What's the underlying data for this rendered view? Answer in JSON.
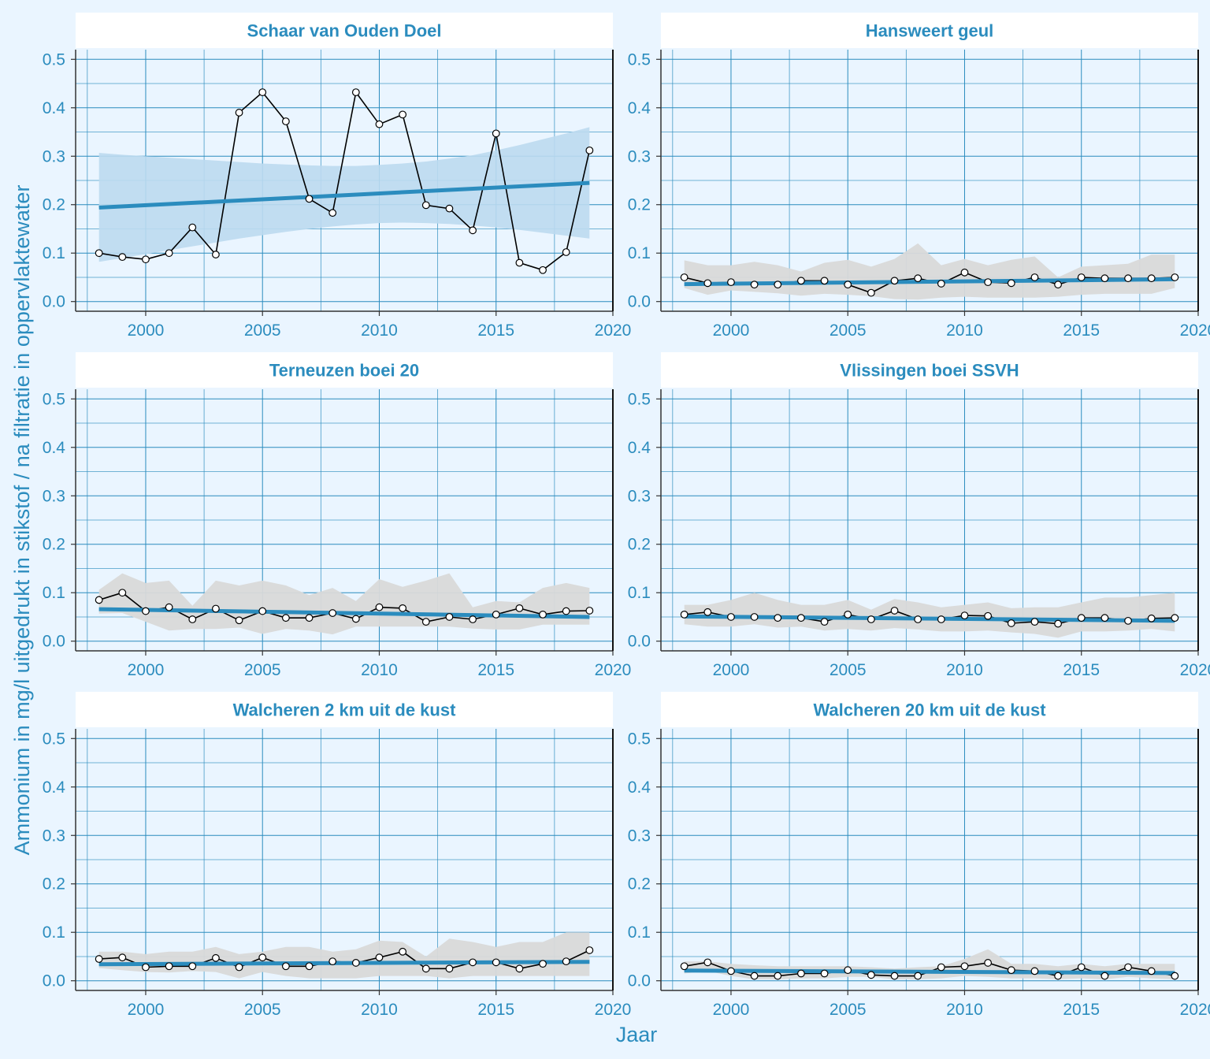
{
  "colors": {
    "background": "#EAF5FF",
    "accent": "#2B8CBE",
    "grid": "#2B8CBE",
    "ribbon_significant": "#BDDAF0",
    "ribbon_not_significant": "#D9D9D9",
    "observed_line": "#000000"
  },
  "chart_data": {
    "type": "line",
    "xlabel": "Jaar",
    "ylabel": "Ammonium in mg/l uitgedrukt in stikstof / na filtratie in oppervlaktewater",
    "xlim": [
      1997,
      2020
    ],
    "ylim": [
      -0.02,
      0.52
    ],
    "x_ticks": [
      2000,
      2005,
      2010,
      2015,
      2020
    ],
    "x_tick_labels": [
      "2000",
      "2005",
      "2010",
      "2015",
      "2020"
    ],
    "y_ticks": [
      0.0,
      0.1,
      0.2,
      0.3,
      0.4,
      0.5
    ],
    "y_tick_labels": [
      "0.0",
      "0.1",
      "0.2",
      "0.3",
      "0.4",
      "0.5"
    ],
    "grid": true,
    "years": [
      1998,
      1999,
      2000,
      2001,
      2002,
      2003,
      2004,
      2005,
      2006,
      2007,
      2008,
      2009,
      2010,
      2011,
      2012,
      2013,
      2014,
      2015,
      2016,
      2017,
      2018,
      2019
    ],
    "panels": [
      {
        "title": "Schaar van Ouden Doel",
        "significant": true,
        "values": [
          0.1,
          0.092,
          0.087,
          0.1,
          0.153,
          0.097,
          0.39,
          0.432,
          0.372,
          0.212,
          0.183,
          0.432,
          0.366,
          0.386,
          0.199,
          0.192,
          0.147,
          0.347,
          0.08,
          0.065,
          0.102,
          0.312
        ],
        "trend": [
          0.194,
          0.245
        ],
        "band_upper": [
          0.307,
          0.303,
          0.3,
          0.297,
          0.294,
          0.291,
          0.288,
          0.285,
          0.283,
          0.281,
          0.28,
          0.28,
          0.282,
          0.285,
          0.289,
          0.295,
          0.302,
          0.312,
          0.323,
          0.335,
          0.347,
          0.36
        ],
        "band_lower": [
          0.082,
          0.09,
          0.098,
          0.106,
          0.114,
          0.122,
          0.13,
          0.137,
          0.144,
          0.15,
          0.155,
          0.159,
          0.162,
          0.163,
          0.162,
          0.16,
          0.157,
          0.153,
          0.148,
          0.142,
          0.136,
          0.13
        ]
      },
      {
        "title": "Hansweert geul",
        "significant": false,
        "values": [
          0.05,
          0.038,
          0.04,
          0.035,
          0.035,
          0.043,
          0.043,
          0.035,
          0.018,
          0.043,
          0.048,
          0.037,
          0.06,
          0.04,
          0.038,
          0.05,
          0.035,
          0.05,
          0.048,
          0.048,
          0.048,
          0.05
        ],
        "trend": [
          0.036,
          0.046
        ],
        "band_upper": [
          0.085,
          0.075,
          0.075,
          0.082,
          0.075,
          0.062,
          0.08,
          0.086,
          0.072,
          0.088,
          0.12,
          0.075,
          0.088,
          0.075,
          0.086,
          0.093,
          0.05,
          0.072,
          0.075,
          0.078,
          0.097,
          0.097
        ],
        "band_lower": [
          0.028,
          0.014,
          0.023,
          0.02,
          0.017,
          0.012,
          0.016,
          0.014,
          0.011,
          0.005,
          0.004,
          0.008,
          0.01,
          0.008,
          0.008,
          0.008,
          0.01,
          0.014,
          0.016,
          0.016,
          0.016,
          0.028
        ]
      },
      {
        "title": "Terneuzen boei 20",
        "significant": false,
        "values": [
          0.085,
          0.1,
          0.062,
          0.07,
          0.045,
          0.067,
          0.043,
          0.062,
          0.048,
          0.048,
          0.058,
          0.046,
          0.07,
          0.068,
          0.04,
          0.05,
          0.045,
          0.055,
          0.068,
          0.055,
          0.062,
          0.063
        ],
        "trend": [
          0.066,
          0.05
        ],
        "band_upper": [
          0.106,
          0.14,
          0.12,
          0.125,
          0.073,
          0.125,
          0.115,
          0.125,
          0.115,
          0.095,
          0.11,
          0.083,
          0.128,
          0.112,
          0.125,
          0.14,
          0.07,
          0.083,
          0.08,
          0.11,
          0.12,
          0.11
        ],
        "band_lower": [
          0.057,
          0.058,
          0.04,
          0.022,
          0.025,
          0.025,
          0.028,
          0.015,
          0.025,
          0.022,
          0.014,
          0.03,
          0.03,
          0.03,
          0.03,
          0.03,
          0.026,
          0.024,
          0.024,
          0.034,
          0.034,
          0.034
        ]
      },
      {
        "title": "Vlissingen boei SSVH",
        "significant": false,
        "values": [
          0.055,
          0.06,
          0.05,
          0.05,
          0.048,
          0.048,
          0.04,
          0.055,
          0.045,
          0.063,
          0.045,
          0.045,
          0.053,
          0.052,
          0.037,
          0.04,
          0.036,
          0.048,
          0.048,
          0.042,
          0.047,
          0.048
        ],
        "trend": [
          0.051,
          0.042
        ],
        "band_upper": [
          0.075,
          0.075,
          0.085,
          0.1,
          0.085,
          0.075,
          0.075,
          0.085,
          0.065,
          0.087,
          0.08,
          0.07,
          0.075,
          0.08,
          0.068,
          0.07,
          0.07,
          0.08,
          0.09,
          0.09,
          0.095,
          0.1
        ],
        "band_lower": [
          0.035,
          0.03,
          0.03,
          0.035,
          0.028,
          0.03,
          0.022,
          0.025,
          0.022,
          0.027,
          0.024,
          0.02,
          0.02,
          0.022,
          0.018,
          0.015,
          0.007,
          0.02,
          0.02,
          0.022,
          0.025,
          0.02
        ]
      },
      {
        "title": "Walcheren 2 km uit de kust",
        "significant": false,
        "values": [
          0.045,
          0.048,
          0.028,
          0.03,
          0.03,
          0.047,
          0.028,
          0.048,
          0.03,
          0.03,
          0.04,
          0.037,
          0.048,
          0.06,
          0.025,
          0.025,
          0.038,
          0.038,
          0.025,
          0.035,
          0.04,
          0.063
        ],
        "trend": [
          0.034,
          0.039
        ],
        "band_upper": [
          0.06,
          0.06,
          0.055,
          0.06,
          0.06,
          0.07,
          0.055,
          0.06,
          0.07,
          0.07,
          0.06,
          0.065,
          0.083,
          0.08,
          0.05,
          0.087,
          0.08,
          0.07,
          0.08,
          0.08,
          0.1,
          0.1
        ],
        "band_lower": [
          0.026,
          0.022,
          0.018,
          0.017,
          0.02,
          0.018,
          0.005,
          0.018,
          0.01,
          0.005,
          0.005,
          0.005,
          0.01,
          0.01,
          0.01,
          0.005,
          0.01,
          0.01,
          0.01,
          0.01,
          0.01,
          0.01
        ]
      },
      {
        "title": "Walcheren 20 km uit de kust",
        "significant": false,
        "values": [
          0.03,
          0.038,
          0.02,
          0.01,
          0.01,
          0.015,
          0.015,
          0.022,
          0.012,
          0.01,
          0.01,
          0.028,
          0.03,
          0.037,
          0.022,
          0.02,
          0.01,
          0.028,
          0.01,
          0.028,
          0.02,
          0.01
        ],
        "trend": [
          0.021,
          0.016
        ],
        "band_upper": [
          0.04,
          0.04,
          0.035,
          0.032,
          0.03,
          0.03,
          0.03,
          0.03,
          0.028,
          0.025,
          0.028,
          0.03,
          0.045,
          0.065,
          0.035,
          0.035,
          0.03,
          0.035,
          0.03,
          0.035,
          0.035,
          0.035
        ],
        "band_lower": [
          0.015,
          0.02,
          0.01,
          0.003,
          0.003,
          0.005,
          0.005,
          0.008,
          0.008,
          0.003,
          0.003,
          0.005,
          0.01,
          0.008,
          0.005,
          0.005,
          0.003,
          0.005,
          0.003,
          0.008,
          0.005,
          0.003
        ]
      }
    ]
  }
}
